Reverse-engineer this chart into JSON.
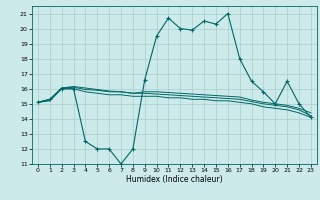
{
  "background_color": "#cceaea",
  "grid_color": "#aacccc",
  "line_color": "#006666",
  "x_label": "Humidex (Indice chaleur)",
  "ylim": [
    11,
    21.5
  ],
  "xlim": [
    -0.5,
    23.5
  ],
  "yticks": [
    11,
    12,
    13,
    14,
    15,
    16,
    17,
    18,
    19,
    20,
    21
  ],
  "xticks": [
    0,
    1,
    2,
    3,
    4,
    5,
    6,
    7,
    8,
    9,
    10,
    11,
    12,
    13,
    14,
    15,
    16,
    17,
    18,
    19,
    20,
    21,
    22,
    23
  ],
  "series1_x": [
    0,
    1,
    2,
    3,
    4,
    5,
    6,
    7,
    8,
    9,
    10,
    11,
    12,
    13,
    14,
    15,
    16,
    17,
    18,
    19,
    20,
    21,
    22,
    23
  ],
  "series1_y": [
    15.1,
    15.3,
    16.0,
    16.0,
    12.5,
    12.0,
    12.0,
    11.0,
    12.0,
    16.6,
    19.5,
    20.7,
    20.0,
    19.9,
    20.5,
    20.3,
    21.0,
    18.0,
    16.5,
    15.8,
    15.0,
    16.5,
    15.0,
    14.1
  ],
  "series2_x": [
    0,
    1,
    2,
    3,
    4,
    5,
    6,
    7,
    8,
    9,
    10,
    11,
    12,
    13,
    14,
    15,
    16,
    17,
    18,
    19,
    20,
    21,
    22,
    23
  ],
  "series2_y": [
    15.1,
    15.2,
    16.0,
    16.0,
    15.8,
    15.7,
    15.6,
    15.6,
    15.5,
    15.5,
    15.5,
    15.4,
    15.4,
    15.3,
    15.3,
    15.2,
    15.2,
    15.1,
    15.0,
    14.8,
    14.7,
    14.6,
    14.4,
    14.1
  ],
  "series3_x": [
    0,
    1,
    2,
    3,
    4,
    5,
    6,
    7,
    8,
    9,
    10,
    11,
    12,
    13,
    14,
    15,
    16,
    17,
    18,
    19,
    20,
    21,
    22,
    23
  ],
  "series3_y": [
    15.1,
    15.25,
    16.05,
    16.1,
    15.95,
    15.9,
    15.8,
    15.8,
    15.7,
    15.7,
    15.65,
    15.6,
    15.55,
    15.5,
    15.45,
    15.4,
    15.35,
    15.3,
    15.15,
    15.0,
    14.9,
    14.8,
    14.6,
    14.2
  ],
  "series4_x": [
    0,
    1,
    2,
    3,
    4,
    5,
    6,
    7,
    8,
    9,
    10,
    11,
    12,
    13,
    14,
    15,
    16,
    17,
    18,
    19,
    20,
    21,
    22,
    23
  ],
  "series4_y": [
    15.1,
    15.3,
    16.05,
    16.15,
    16.05,
    15.95,
    15.85,
    15.8,
    15.7,
    15.8,
    15.8,
    15.75,
    15.7,
    15.65,
    15.6,
    15.55,
    15.5,
    15.45,
    15.25,
    15.1,
    15.0,
    14.9,
    14.7,
    14.4
  ]
}
